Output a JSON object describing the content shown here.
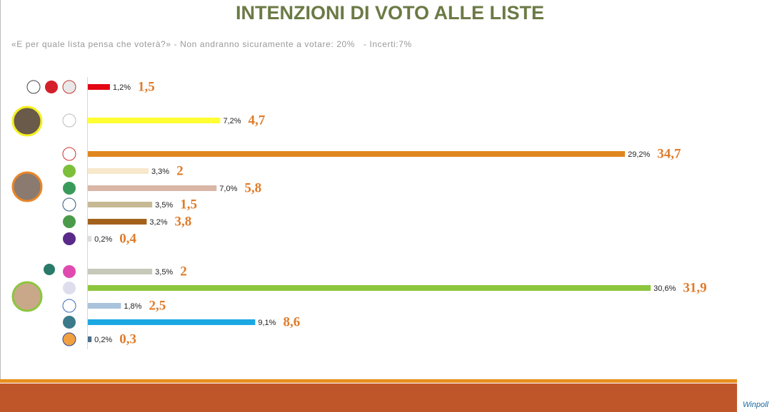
{
  "chart_data": {
    "type": "bar",
    "orientation": "horizontal",
    "title": "INTENZIONI DI VOTO ALLE LISTE",
    "subtitle": "«E per quale lista pensa che voterà?» - Non andranno sicuramente a votare: 20%   - Incerti:7%",
    "logo": "Winpoll",
    "categories": [
      null,
      null,
      null,
      null,
      null,
      null,
      null,
      null,
      null,
      null,
      null,
      null,
      null
    ],
    "values": [
      1.2,
      7.2,
      29.2,
      3.3,
      7.0,
      3.5,
      3.2,
      0.2,
      3.5,
      30.6,
      1.8,
      9.1,
      0.2
    ],
    "value_labels": [
      "1,2%",
      "7,2%",
      "29,2%",
      "3,3%",
      "7,0%",
      "3,5%",
      "3,2%",
      "0,2%",
      "3,5%",
      "30,6%",
      "1,8%",
      "9,1%",
      "0,2%"
    ],
    "colors": [
      "#e30613",
      "#ffff33",
      "#e0861e",
      "#f8e8cc",
      "#d9b6a6",
      "#c6b994",
      "#a3621c",
      "#dddddd",
      "#c6c9b9",
      "#8cc63f",
      "#a9c3dc",
      "#1ba8e2",
      "#4a6e8c"
    ],
    "previous_values": [
      1.5,
      4.7,
      34.7,
      2,
      5.8,
      1.5,
      3.8,
      0.4,
      2,
      31.9,
      2.5,
      8.6,
      0.3
    ],
    "previous_value_labels": [
      "1,5",
      "4,7",
      "34,7",
      "2",
      "5,8",
      "1,5",
      "3,8",
      "0,4",
      "2",
      "31,9",
      "2,5",
      "8,6",
      "0,3"
    ],
    "xlim": [
      0,
      37
    ]
  }
}
